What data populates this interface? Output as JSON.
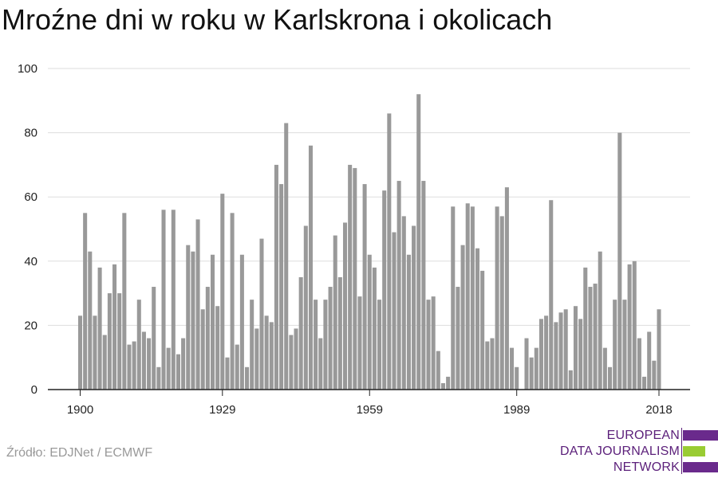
{
  "title": "Mroźne dni w roku w Karlskrona i okolicach",
  "source": "Źródło: EDJNet / ECMWF",
  "logo": {
    "lines": [
      "EUROPEAN",
      "DATA JOURNALISM",
      "NETWORK"
    ],
    "text_color": "#5b1f7a",
    "bar_colors": [
      "#6a2a8c",
      "#99cc33",
      "#6a2a8c"
    ]
  },
  "colors": {
    "bar": "#999999",
    "grid": "#dddddd",
    "axis": "#222222"
  },
  "chart_data": {
    "type": "bar",
    "title": "Mroźne dni w roku w Karlskrona i okolicach",
    "xlabel": "",
    "ylabel": "",
    "ylim": [
      0,
      100
    ],
    "yticks": [
      0,
      20,
      40,
      60,
      80,
      100
    ],
    "xticks": [
      1900,
      1929,
      1959,
      1989,
      2018
    ],
    "grid": true,
    "legend": "none",
    "x_start": 1900,
    "x_end": 2018,
    "values": [
      23,
      55,
      43,
      23,
      38,
      17,
      30,
      39,
      30,
      55,
      14,
      15,
      28,
      18,
      16,
      32,
      7,
      56,
      13,
      56,
      11,
      16,
      45,
      43,
      53,
      25,
      32,
      42,
      26,
      61,
      10,
      55,
      14,
      42,
      7,
      28,
      19,
      47,
      23,
      21,
      70,
      64,
      83,
      17,
      19,
      35,
      51,
      76,
      28,
      16,
      28,
      32,
      48,
      35,
      52,
      70,
      69,
      29,
      64,
      42,
      38,
      28,
      62,
      86,
      49,
      65,
      54,
      42,
      51,
      92,
      65,
      28,
      29,
      12,
      2,
      4,
      57,
      32,
      45,
      58,
      57,
      44,
      37,
      15,
      16,
      57,
      54,
      63,
      13,
      7,
      0,
      16,
      10,
      13,
      22,
      23,
      59,
      21,
      24,
      25,
      6,
      26,
      22,
      38,
      32,
      33,
      43,
      13,
      7,
      28,
      80,
      28,
      39,
      40,
      16,
      4,
      18,
      9,
      25
    ]
  }
}
